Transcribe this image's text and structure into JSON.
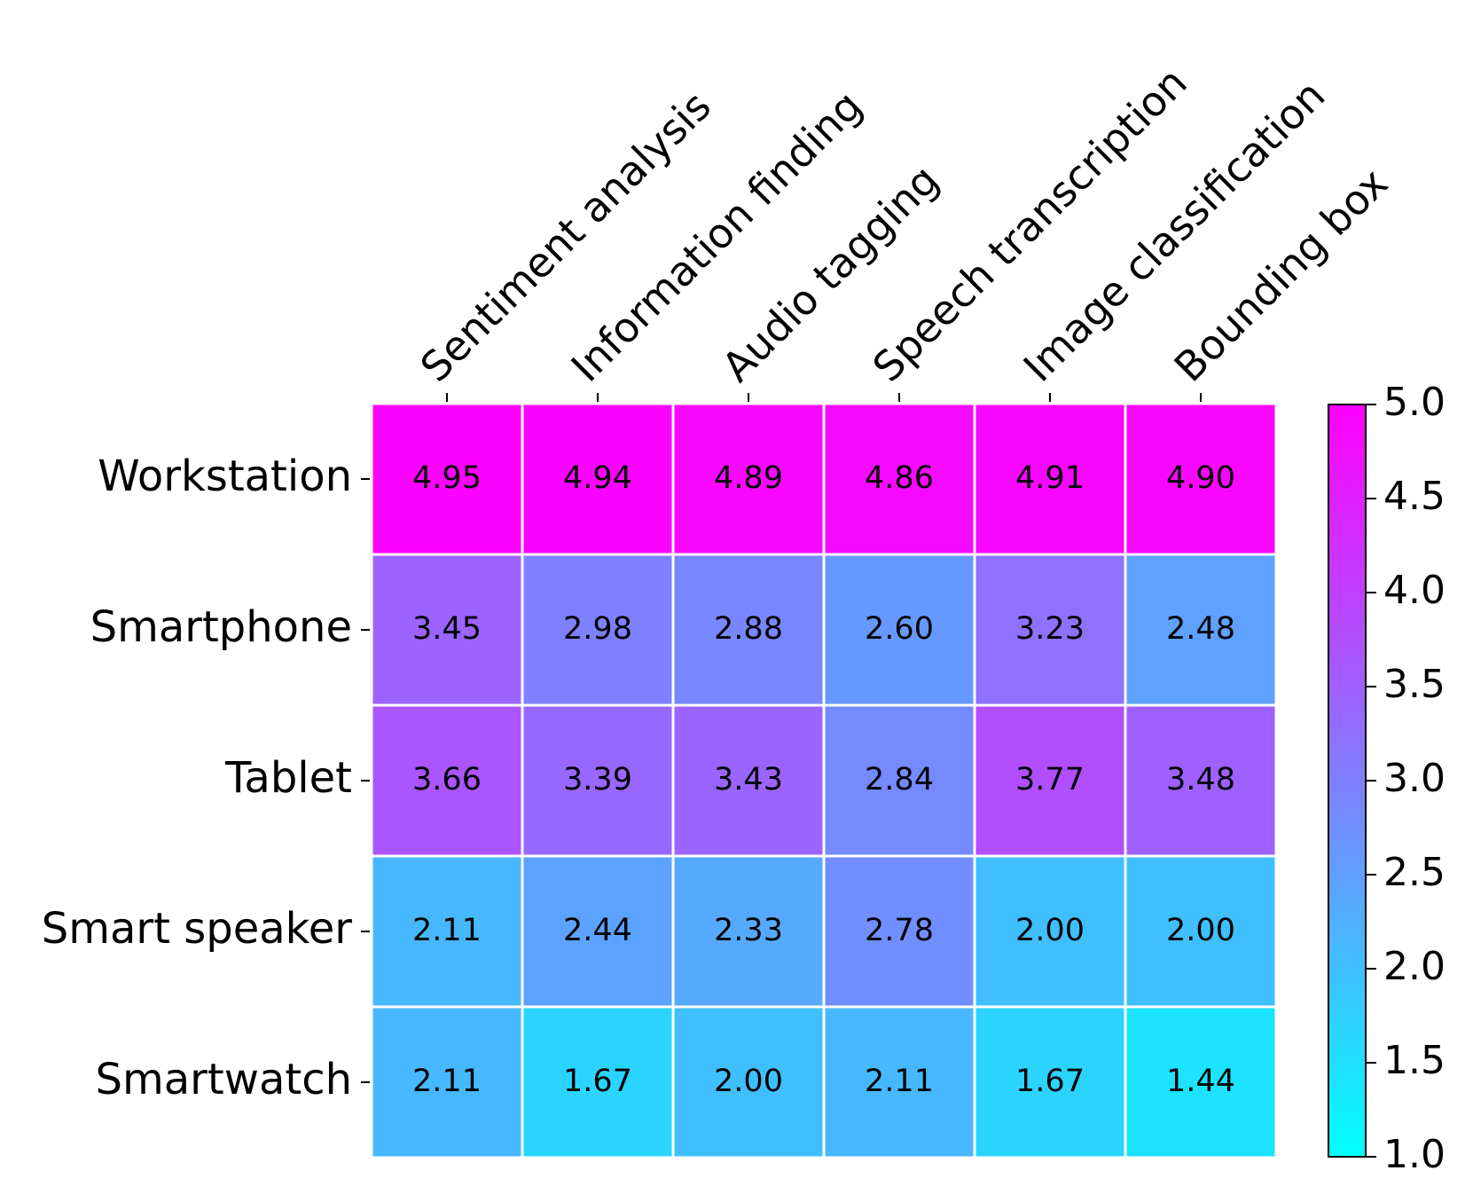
{
  "chart_data": {
    "type": "heatmap",
    "title": "",
    "rows": [
      "Workstation",
      "Smartphone",
      "Tablet",
      "Smart speaker",
      "Smartwatch"
    ],
    "columns": [
      "Sentiment analysis",
      "Information finding",
      "Audio tagging",
      "Speech transcription",
      "Image classification",
      "Bounding box"
    ],
    "values": [
      [
        4.95,
        4.94,
        4.89,
        4.86,
        4.91,
        4.9
      ],
      [
        3.45,
        2.98,
        2.88,
        2.6,
        3.23,
        2.48
      ],
      [
        3.66,
        3.39,
        3.43,
        2.84,
        3.77,
        3.48
      ],
      [
        2.11,
        2.44,
        2.33,
        2.78,
        2.0,
        2.0
      ],
      [
        2.11,
        1.67,
        2.0,
        2.11,
        1.67,
        1.44
      ]
    ],
    "value_format_decimals": 2,
    "colormap": "cool",
    "colormap_start": "#00ffff",
    "colormap_end": "#ff00ff",
    "cell_border_color": "#ffffff",
    "colorbar": {
      "min": 1.0,
      "max": 5.0,
      "ticks": [
        "1.0",
        "1.5",
        "2.0",
        "2.5",
        "3.0",
        "3.5",
        "4.0",
        "4.5",
        "5.0"
      ],
      "position": "right"
    },
    "column_labels_position": "top",
    "column_label_rotation_deg": -45
  }
}
